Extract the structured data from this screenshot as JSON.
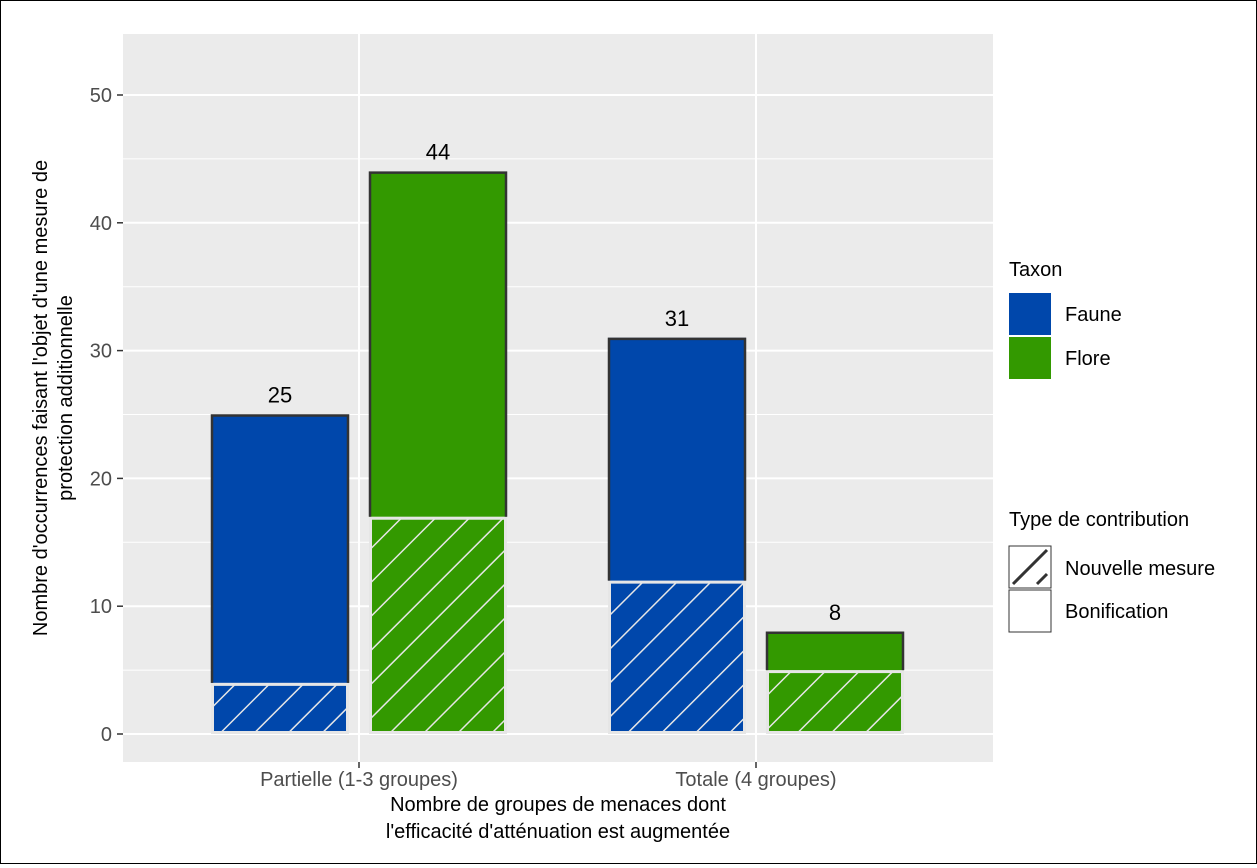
{
  "chart_data": {
    "type": "bar",
    "title": "",
    "xlabel": "Nombre de groupes de menaces dont l'efficacité d'atténuation est augmentée",
    "xlabel_lines": [
      "Nombre de groupes de menaces dont",
      "l'efficacité d'atténuation est augmentée"
    ],
    "ylabel": "Nombre d'occurrences faisant l'objet d'une mesure de protection additionnelle",
    "ylabel_lines": [
      "Nombre d'occurrences faisant l'objet d'une mesure de",
      "protection additionnelle"
    ],
    "ylim": [
      0,
      50
    ],
    "yticks": [
      0,
      10,
      20,
      30,
      40,
      50
    ],
    "categories": [
      "Partielle (1-3 groupes)",
      "Totale (4 groupes)"
    ],
    "grid": true,
    "legend_placement": "right",
    "series": [
      {
        "name": "Faune",
        "color": "#0047ab",
        "totals": [
          25,
          31
        ],
        "nouvelle_mesure": [
          4,
          12
        ],
        "total_labels": [
          "25",
          "31"
        ]
      },
      {
        "name": "Flore",
        "color": "#339900",
        "totals": [
          44,
          8
        ],
        "nouvelle_mesure": [
          17,
          5
        ],
        "total_labels": [
          "44",
          "8"
        ]
      }
    ],
    "legends": {
      "taxon": {
        "title": "Taxon",
        "items": [
          {
            "label": "Faune",
            "color": "#0047ab"
          },
          {
            "label": "Flore",
            "color": "#339900"
          }
        ]
      },
      "contribution": {
        "title": "Type de contribution",
        "items": [
          {
            "label": "Nouvelle mesure",
            "pattern": "hatched"
          },
          {
            "label": "Bonification",
            "pattern": "plain"
          }
        ]
      }
    },
    "colors": {
      "panel_background": "#ebebeb",
      "grid": "#ffffff",
      "bar_outline": "#333333",
      "hatch_line": "#e6e6e6"
    }
  }
}
